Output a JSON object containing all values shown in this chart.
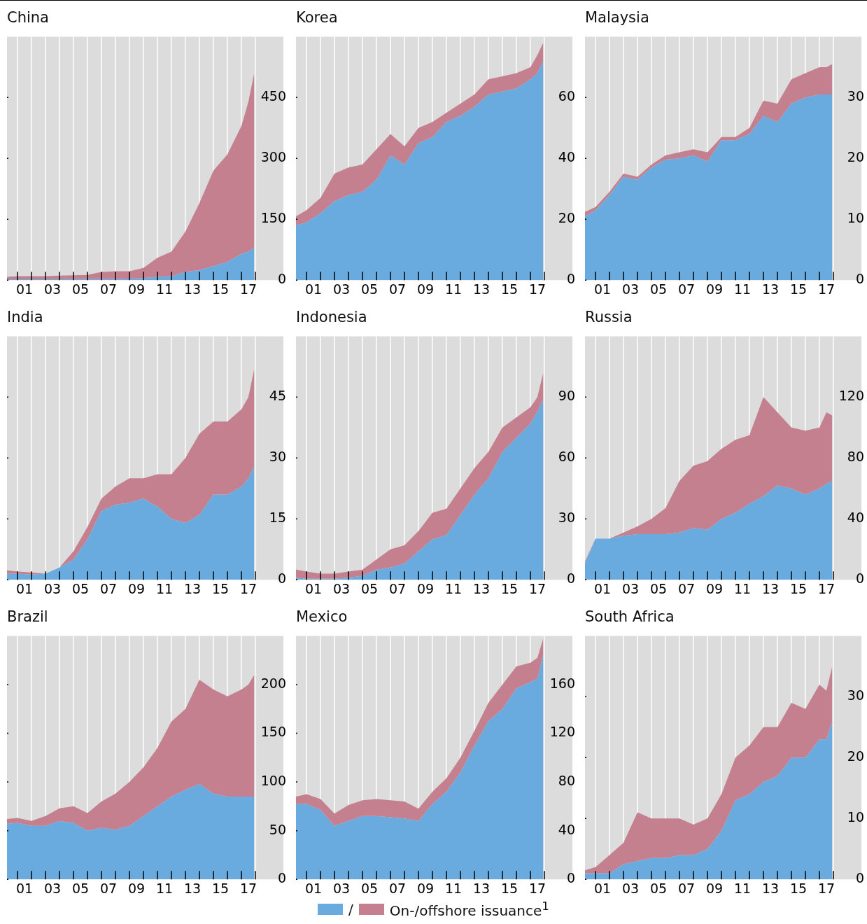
{
  "chart_data": [
    {
      "type": "area",
      "title": "China",
      "stacked": true,
      "grid": "x",
      "xlim": [
        "2000-04",
        "2020-01"
      ],
      "ylim": [
        0,
        600
      ],
      "yticks": [
        0,
        150,
        300,
        450
      ],
      "xticks": [
        {
          "value": "2001",
          "label": null
        },
        {
          "value": "2001-07",
          "label": "01"
        },
        {
          "value": "2002",
          "label": null
        },
        {
          "value": "2003",
          "label": null
        },
        {
          "value": "2003-07",
          "label": "03"
        },
        {
          "value": "2004",
          "label": null
        },
        {
          "value": "2005",
          "label": null
        },
        {
          "value": "2005-07",
          "label": "05"
        },
        {
          "value": "2006",
          "label": null
        },
        {
          "value": "2007",
          "label": null
        },
        {
          "value": "2007-07",
          "label": "07"
        },
        {
          "value": "2008",
          "label": null
        },
        {
          "value": "2009",
          "label": null
        },
        {
          "value": "2009-07",
          "label": "09"
        },
        {
          "value": "2010",
          "label": null
        },
        {
          "value": "2011",
          "label": null
        },
        {
          "value": "2011-07",
          "label": "11"
        },
        {
          "value": "2012",
          "label": null
        },
        {
          "value": "2013",
          "label": null
        },
        {
          "value": "2013-07",
          "label": "13"
        },
        {
          "value": "2014",
          "label": null
        },
        {
          "value": "2015",
          "label": null
        },
        {
          "value": "2015-07",
          "label": "15"
        },
        {
          "value": "2016",
          "label": null
        },
        {
          "value": "2017",
          "label": null
        },
        {
          "value": "2017-07",
          "label": "17"
        },
        {
          "value": "2018",
          "label": null
        }
      ],
      "x": [
        "2000-04",
        "2001",
        "2002",
        "2003",
        "2004",
        "2005",
        "2006",
        "2007",
        "2008",
        "2009",
        "2010",
        "2011",
        "2012",
        "2013",
        "2014",
        "2015",
        "2016",
        "2017",
        "2017-07",
        "2017-12"
      ],
      "series": [
        {
          "color": "#6aabdf",
          "values": [
            2,
            2,
            2,
            2,
            2,
            3,
            3,
            3,
            3,
            4,
            5,
            8,
            10,
            20,
            25,
            35,
            45,
            65,
            70,
            80
          ]
        },
        {
          "color": "#c4808f",
          "values": [
            6,
            8,
            8,
            8,
            9,
            9,
            10,
            17,
            19,
            18,
            25,
            47,
            60,
            100,
            165,
            235,
            265,
            315,
            370,
            430
          ]
        }
      ]
    },
    {
      "type": "area",
      "title": "Korea",
      "stacked": true,
      "grid": "x",
      "xlim": [
        "2000-04",
        "2020-01"
      ],
      "ylim": [
        0,
        80
      ],
      "yticks": [
        0,
        20,
        40,
        60
      ],
      "xticks": [
        {
          "value": "2001",
          "label": null
        },
        {
          "value": "2001-07",
          "label": "01"
        },
        {
          "value": "2002",
          "label": null
        },
        {
          "value": "2003",
          "label": null
        },
        {
          "value": "2003-07",
          "label": "03"
        },
        {
          "value": "2004",
          "label": null
        },
        {
          "value": "2005",
          "label": null
        },
        {
          "value": "2005-07",
          "label": "05"
        },
        {
          "value": "2006",
          "label": null
        },
        {
          "value": "2007",
          "label": null
        },
        {
          "value": "2007-07",
          "label": "07"
        },
        {
          "value": "2008",
          "label": null
        },
        {
          "value": "2009",
          "label": null
        },
        {
          "value": "2009-07",
          "label": "09"
        },
        {
          "value": "2010",
          "label": null
        },
        {
          "value": "2011",
          "label": null
        },
        {
          "value": "2011-07",
          "label": "11"
        },
        {
          "value": "2012",
          "label": null
        },
        {
          "value": "2013",
          "label": null
        },
        {
          "value": "2013-07",
          "label": "13"
        },
        {
          "value": "2014",
          "label": null
        },
        {
          "value": "2015",
          "label": null
        },
        {
          "value": "2015-07",
          "label": "15"
        },
        {
          "value": "2016",
          "label": null
        },
        {
          "value": "2017",
          "label": null
        },
        {
          "value": "2017-07",
          "label": "17"
        },
        {
          "value": "2018",
          "label": null
        }
      ],
      "x": [
        "2000-04",
        "2001",
        "2002",
        "2003",
        "2004",
        "2005",
        "2006",
        "2007",
        "2008",
        "2009",
        "2010",
        "2011",
        "2012",
        "2013",
        "2014",
        "2015",
        "2016",
        "2017",
        "2017-07",
        "2017-12"
      ],
      "series": [
        {
          "color": "#6aabdf",
          "values": [
            18,
            19,
            22,
            26,
            28,
            29,
            33,
            41,
            38,
            45,
            47,
            52,
            54,
            57,
            61,
            62,
            63,
            66,
            68,
            72
          ]
        },
        {
          "color": "#c4808f",
          "values": [
            3,
            4,
            5,
            9,
            9,
            9,
            10,
            7,
            6,
            5,
            5,
            3,
            4,
            4,
            5,
            5,
            5,
            4,
            6,
            6
          ]
        }
      ]
    },
    {
      "type": "area",
      "title": "Malaysia",
      "stacked": true,
      "grid": "x",
      "xlim": [
        "2000-04",
        "2020-01"
      ],
      "ylim": [
        0,
        40
      ],
      "yticks": [
        0,
        10,
        20,
        30
      ],
      "xticks": [
        {
          "value": "2001",
          "label": null
        },
        {
          "value": "2001-07",
          "label": "01"
        },
        {
          "value": "2002",
          "label": null
        },
        {
          "value": "2003",
          "label": null
        },
        {
          "value": "2003-07",
          "label": "03"
        },
        {
          "value": "2004",
          "label": null
        },
        {
          "value": "2005",
          "label": null
        },
        {
          "value": "2005-07",
          "label": "05"
        },
        {
          "value": "2006",
          "label": null
        },
        {
          "value": "2007",
          "label": null
        },
        {
          "value": "2007-07",
          "label": "07"
        },
        {
          "value": "2008",
          "label": null
        },
        {
          "value": "2009",
          "label": null
        },
        {
          "value": "2009-07",
          "label": "09"
        },
        {
          "value": "2010",
          "label": null
        },
        {
          "value": "2011",
          "label": null
        },
        {
          "value": "2011-07",
          "label": "11"
        },
        {
          "value": "2012",
          "label": null
        },
        {
          "value": "2013",
          "label": null
        },
        {
          "value": "2013-07",
          "label": "13"
        },
        {
          "value": "2014",
          "label": null
        },
        {
          "value": "2015",
          "label": null
        },
        {
          "value": "2015-07",
          "label": "15"
        },
        {
          "value": "2016",
          "label": null
        },
        {
          "value": "2017",
          "label": null
        },
        {
          "value": "2017-07",
          "label": "17"
        },
        {
          "value": "2018",
          "label": null
        }
      ],
      "x": [
        "2000-04",
        "2001",
        "2002",
        "2003",
        "2004",
        "2005",
        "2006",
        "2007",
        "2008",
        "2009",
        "2010",
        "2011",
        "2012",
        "2013",
        "2014",
        "2015",
        "2016",
        "2017",
        "2017-07",
        "2017-12"
      ],
      "series": [
        {
          "color": "#6aabdf",
          "values": [
            10.5,
            11.5,
            14,
            17,
            16.5,
            18.5,
            19.8,
            20,
            20.5,
            19.5,
            23,
            23,
            24,
            27,
            26,
            29,
            30,
            30.5,
            30.5,
            30.5
          ]
        },
        {
          "color": "#c4808f",
          "values": [
            0.7,
            0.5,
            0.5,
            0.5,
            0.5,
            0.5,
            0.7,
            1,
            1,
            1.5,
            0.5,
            0.5,
            1,
            2.5,
            3,
            4,
            4,
            4.5,
            4.5,
            5
          ]
        }
      ]
    },
    {
      "type": "area",
      "title": "India",
      "stacked": true,
      "grid": "x",
      "xlim": [
        "2000-04",
        "2020-01"
      ],
      "ylim": [
        0,
        60
      ],
      "yticks": [
        0,
        15,
        30,
        45
      ],
      "xticks": [
        {
          "value": "2001",
          "label": null
        },
        {
          "value": "2001-07",
          "label": "01"
        },
        {
          "value": "2002",
          "label": null
        },
        {
          "value": "2003",
          "label": null
        },
        {
          "value": "2003-07",
          "label": "03"
        },
        {
          "value": "2004",
          "label": null
        },
        {
          "value": "2005",
          "label": null
        },
        {
          "value": "2005-07",
          "label": "05"
        },
        {
          "value": "2006",
          "label": null
        },
        {
          "value": "2007",
          "label": null
        },
        {
          "value": "2007-07",
          "label": "07"
        },
        {
          "value": "2008",
          "label": null
        },
        {
          "value": "2009",
          "label": null
        },
        {
          "value": "2009-07",
          "label": "09"
        },
        {
          "value": "2010",
          "label": null
        },
        {
          "value": "2011",
          "label": null
        },
        {
          "value": "2011-07",
          "label": "11"
        },
        {
          "value": "2012",
          "label": null
        },
        {
          "value": "2013",
          "label": null
        },
        {
          "value": "2013-07",
          "label": "13"
        },
        {
          "value": "2014",
          "label": null
        },
        {
          "value": "2015",
          "label": null
        },
        {
          "value": "2015-07",
          "label": "15"
        },
        {
          "value": "2016",
          "label": null
        },
        {
          "value": "2017",
          "label": null
        },
        {
          "value": "2017-07",
          "label": "17"
        },
        {
          "value": "2018",
          "label": null
        }
      ],
      "x": [
        "2000-04",
        "2001",
        "2002",
        "2003",
        "2004",
        "2005",
        "2006",
        "2007",
        "2008",
        "2009",
        "2010",
        "2011",
        "2012",
        "2013",
        "2014",
        "2015",
        "2016",
        "2017",
        "2017-07",
        "2017-12"
      ],
      "series": [
        {
          "color": "#6aabdf",
          "values": [
            1.5,
            1.5,
            1.3,
            1.5,
            3,
            5,
            10,
            17,
            18.5,
            19,
            20,
            18,
            15,
            14,
            16,
            21,
            21,
            23,
            25,
            28
          ]
        },
        {
          "color": "#c4808f",
          "values": [
            0.8,
            0.5,
            0.5,
            0,
            0,
            2,
            3,
            3,
            4.5,
            6,
            5,
            8,
            11,
            16,
            20,
            18,
            18,
            19,
            20,
            24
          ]
        }
      ]
    },
    {
      "type": "area",
      "title": "Indonesia",
      "stacked": true,
      "grid": "x",
      "xlim": [
        "2000-04",
        "2020-01"
      ],
      "ylim": [
        0,
        120
      ],
      "yticks": [
        0,
        30,
        60,
        90
      ],
      "xticks": [
        {
          "value": "2001",
          "label": null
        },
        {
          "value": "2001-07",
          "label": "01"
        },
        {
          "value": "2002",
          "label": null
        },
        {
          "value": "2003",
          "label": null
        },
        {
          "value": "2003-07",
          "label": "03"
        },
        {
          "value": "2004",
          "label": null
        },
        {
          "value": "2005",
          "label": null
        },
        {
          "value": "2005-07",
          "label": "05"
        },
        {
          "value": "2006",
          "label": null
        },
        {
          "value": "2007",
          "label": null
        },
        {
          "value": "2007-07",
          "label": "07"
        },
        {
          "value": "2008",
          "label": null
        },
        {
          "value": "2009",
          "label": null
        },
        {
          "value": "2009-07",
          "label": "09"
        },
        {
          "value": "2010",
          "label": null
        },
        {
          "value": "2011",
          "label": null
        },
        {
          "value": "2011-07",
          "label": "11"
        },
        {
          "value": "2012",
          "label": null
        },
        {
          "value": "2013",
          "label": null
        },
        {
          "value": "2013-07",
          "label": "13"
        },
        {
          "value": "2014",
          "label": null
        },
        {
          "value": "2015",
          "label": null
        },
        {
          "value": "2015-07",
          "label": "15"
        },
        {
          "value": "2016",
          "label": null
        },
        {
          "value": "2017",
          "label": null
        },
        {
          "value": "2017-07",
          "label": "17"
        },
        {
          "value": "2018",
          "label": null
        }
      ],
      "x": [
        "2000-04",
        "2001",
        "2002",
        "2003",
        "2004",
        "2005",
        "2006",
        "2007",
        "2008",
        "2009",
        "2010",
        "2011",
        "2012",
        "2013",
        "2014",
        "2015",
        "2016",
        "2017",
        "2017-07",
        "2017-12"
      ],
      "series": [
        {
          "color": "#6aabdf",
          "values": [
            1,
            0.5,
            0.5,
            0.5,
            1,
            2,
            5,
            6,
            8,
            14,
            20,
            22,
            32,
            42,
            50,
            63,
            70,
            77,
            83,
            89
          ]
        },
        {
          "color": "#c4808f",
          "values": [
            4,
            3.5,
            2.5,
            2.5,
            3,
            3,
            5,
            9,
            9,
            10,
            13,
            13,
            13,
            13,
            13,
            12,
            10,
            8,
            7,
            13
          ]
        }
      ]
    },
    {
      "type": "area",
      "title": "Russia",
      "stacked": true,
      "grid": "x",
      "xlim": [
        "2000-04",
        "2020-01"
      ],
      "ylim": [
        0,
        160
      ],
      "yticks": [
        0,
        40,
        80,
        120
      ],
      "xticks": [
        {
          "value": "2001",
          "label": null
        },
        {
          "value": "2001-07",
          "label": "01"
        },
        {
          "value": "2002",
          "label": null
        },
        {
          "value": "2003",
          "label": null
        },
        {
          "value": "2003-07",
          "label": "03"
        },
        {
          "value": "2004",
          "label": null
        },
        {
          "value": "2005",
          "label": null
        },
        {
          "value": "2005-07",
          "label": "05"
        },
        {
          "value": "2006",
          "label": null
        },
        {
          "value": "2007",
          "label": null
        },
        {
          "value": "2007-07",
          "label": "07"
        },
        {
          "value": "2008",
          "label": null
        },
        {
          "value": "2009",
          "label": null
        },
        {
          "value": "2009-07",
          "label": "09"
        },
        {
          "value": "2010",
          "label": null
        },
        {
          "value": "2011",
          "label": null
        },
        {
          "value": "2011-07",
          "label": "11"
        },
        {
          "value": "2012",
          "label": null
        },
        {
          "value": "2013",
          "label": null
        },
        {
          "value": "2013-07",
          "label": "13"
        },
        {
          "value": "2014",
          "label": null
        },
        {
          "value": "2015",
          "label": null
        },
        {
          "value": "2015-07",
          "label": "15"
        },
        {
          "value": "2016",
          "label": null
        },
        {
          "value": "2017",
          "label": null
        },
        {
          "value": "2017-07",
          "label": "17"
        },
        {
          "value": "2018",
          "label": null
        }
      ],
      "x": [
        "2000-04",
        "2001",
        "2002",
        "2003",
        "2004",
        "2005",
        "2006",
        "2007",
        "2008",
        "2009",
        "2010",
        "2011",
        "2012",
        "2013",
        "2014",
        "2015",
        "2016",
        "2017",
        "2017-07",
        "2017-12"
      ],
      "series": [
        {
          "color": "#6aabdf",
          "values": [
            11,
            27,
            27,
            29,
            30,
            30,
            30,
            31,
            34,
            33,
            40,
            44,
            50,
            55,
            62,
            60,
            56,
            60,
            63,
            65
          ]
        },
        {
          "color": "#c4808f",
          "values": [
            1,
            0,
            0,
            2,
            5,
            10,
            17,
            34,
            41,
            45,
            46,
            48,
            45,
            65,
            48,
            40,
            42,
            40,
            47,
            43
          ]
        }
      ]
    },
    {
      "type": "area",
      "title": "Brazil",
      "stacked": true,
      "grid": "x",
      "xlim": [
        "2000-04",
        "2020-01"
      ],
      "ylim": [
        0,
        250
      ],
      "yticks": [
        0,
        50,
        100,
        150,
        200
      ],
      "xticks": [
        {
          "value": "2001",
          "label": null
        },
        {
          "value": "2001-07",
          "label": "01"
        },
        {
          "value": "2002",
          "label": null
        },
        {
          "value": "2003",
          "label": null
        },
        {
          "value": "2003-07",
          "label": "03"
        },
        {
          "value": "2004",
          "label": null
        },
        {
          "value": "2005",
          "label": null
        },
        {
          "value": "2005-07",
          "label": "05"
        },
        {
          "value": "2006",
          "label": null
        },
        {
          "value": "2007",
          "label": null
        },
        {
          "value": "2007-07",
          "label": "07"
        },
        {
          "value": "2008",
          "label": null
        },
        {
          "value": "2009",
          "label": null
        },
        {
          "value": "2009-07",
          "label": "09"
        },
        {
          "value": "2010",
          "label": null
        },
        {
          "value": "2011",
          "label": null
        },
        {
          "value": "2011-07",
          "label": "11"
        },
        {
          "value": "2012",
          "label": null
        },
        {
          "value": "2013",
          "label": null
        },
        {
          "value": "2013-07",
          "label": "13"
        },
        {
          "value": "2014",
          "label": null
        },
        {
          "value": "2015",
          "label": null
        },
        {
          "value": "2015-07",
          "label": "15"
        },
        {
          "value": "2016",
          "label": null
        },
        {
          "value": "2017",
          "label": null
        },
        {
          "value": "2017-07",
          "label": "17"
        },
        {
          "value": "2018",
          "label": null
        }
      ],
      "x": [
        "2000-04",
        "2001",
        "2002",
        "2003",
        "2004",
        "2005",
        "2006",
        "2007",
        "2008",
        "2009",
        "2010",
        "2011",
        "2012",
        "2013",
        "2014",
        "2015",
        "2016",
        "2017",
        "2017-07",
        "2017-12"
      ],
      "series": [
        {
          "color": "#6aabdf",
          "values": [
            57,
            58,
            55,
            55,
            60,
            58,
            50,
            53,
            51,
            55,
            65,
            75,
            85,
            92,
            98,
            88,
            85,
            85,
            85,
            85
          ]
        },
        {
          "color": "#c4808f",
          "values": [
            5,
            5,
            5,
            10,
            13,
            17,
            18,
            27,
            37,
            45,
            50,
            60,
            77,
            83,
            107,
            107,
            103,
            110,
            115,
            125
          ]
        }
      ]
    },
    {
      "type": "area",
      "title": "Mexico",
      "stacked": true,
      "grid": "x",
      "legend": "bottom",
      "xlim": [
        "2000-04",
        "2020-01"
      ],
      "ylim": [
        0,
        200
      ],
      "yticks": [
        0,
        40,
        80,
        120,
        160
      ],
      "xticks": [
        {
          "value": "2001",
          "label": null
        },
        {
          "value": "2001-07",
          "label": "01"
        },
        {
          "value": "2002",
          "label": null
        },
        {
          "value": "2003",
          "label": null
        },
        {
          "value": "2003-07",
          "label": "03"
        },
        {
          "value": "2004",
          "label": null
        },
        {
          "value": "2005",
          "label": null
        },
        {
          "value": "2005-07",
          "label": "05"
        },
        {
          "value": "2006",
          "label": null
        },
        {
          "value": "2007",
          "label": null
        },
        {
          "value": "2007-07",
          "label": "07"
        },
        {
          "value": "2008",
          "label": null
        },
        {
          "value": "2009",
          "label": null
        },
        {
          "value": "2009-07",
          "label": "09"
        },
        {
          "value": "2010",
          "label": null
        },
        {
          "value": "2011",
          "label": null
        },
        {
          "value": "2011-07",
          "label": "11"
        },
        {
          "value": "2012",
          "label": null
        },
        {
          "value": "2013",
          "label": null
        },
        {
          "value": "2013-07",
          "label": "13"
        },
        {
          "value": "2014",
          "label": null
        },
        {
          "value": "2015",
          "label": null
        },
        {
          "value": "2015-07",
          "label": "15"
        },
        {
          "value": "2016",
          "label": null
        },
        {
          "value": "2017",
          "label": null
        },
        {
          "value": "2017-07",
          "label": "17"
        },
        {
          "value": "2018",
          "label": null
        }
      ],
      "x": [
        "2000-04",
        "2001",
        "2002",
        "2003",
        "2004",
        "2005",
        "2006",
        "2007",
        "2008",
        "2009",
        "2010",
        "2011",
        "2012",
        "2013",
        "2014",
        "2015",
        "2016",
        "2017",
        "2017-07",
        "2017-12"
      ],
      "series": [
        {
          "name": "/",
          "color": "#6aabdf",
          "values": [
            62,
            62,
            57,
            44,
            48,
            52,
            52,
            51,
            50,
            48,
            62,
            72,
            88,
            110,
            130,
            140,
            157,
            162,
            165,
            185
          ]
        },
        {
          "name": "On-/offshore issuance$^{1}$",
          "color": "#c4808f",
          "values": [
            6,
            8,
            9,
            10,
            13,
            13,
            14,
            14,
            14,
            10,
            10,
            11,
            12,
            12,
            15,
            20,
            18,
            16,
            17,
            13
          ]
        }
      ]
    },
    {
      "type": "area",
      "title": "South Africa",
      "stacked": true,
      "grid": "x",
      "xlim": [
        "2000-04",
        "2020-01"
      ],
      "ylim": [
        0,
        40
      ],
      "yticks": [
        0,
        10,
        20,
        30
      ],
      "xticks": [
        {
          "value": "2001",
          "label": null
        },
        {
          "value": "2001-07",
          "label": "01"
        },
        {
          "value": "2002",
          "label": null
        },
        {
          "value": "2003",
          "label": null
        },
        {
          "value": "2003-07",
          "label": "03"
        },
        {
          "value": "2004",
          "label": null
        },
        {
          "value": "2005",
          "label": null
        },
        {
          "value": "2005-07",
          "label": "05"
        },
        {
          "value": "2006",
          "label": null
        },
        {
          "value": "2007",
          "label": null
        },
        {
          "value": "2007-07",
          "label": "07"
        },
        {
          "value": "2008",
          "label": null
        },
        {
          "value": "2009",
          "label": null
        },
        {
          "value": "2009-07",
          "label": "09"
        },
        {
          "value": "2010",
          "label": null
        },
        {
          "value": "2011",
          "label": null
        },
        {
          "value": "2011-07",
          "label": "11"
        },
        {
          "value": "2012",
          "label": null
        },
        {
          "value": "2013",
          "label": null
        },
        {
          "value": "2013-07",
          "label": "13"
        },
        {
          "value": "2014",
          "label": null
        },
        {
          "value": "2015",
          "label": null
        },
        {
          "value": "2015-07",
          "label": "15"
        },
        {
          "value": "2016",
          "label": null
        },
        {
          "value": "2017",
          "label": null
        },
        {
          "value": "2017-07",
          "label": "17"
        },
        {
          "value": "2018",
          "label": null
        }
      ],
      "x": [
        "2000-04",
        "2001",
        "2002",
        "2003",
        "2004",
        "2005",
        "2006",
        "2007",
        "2008",
        "2009",
        "2010",
        "2011",
        "2012",
        "2013",
        "2014",
        "2015",
        "2016",
        "2017",
        "2017-07",
        "2017-12"
      ],
      "series": [
        {
          "color": "#6aabdf",
          "values": [
            1,
            1,
            1,
            2.5,
            3,
            3.5,
            3.5,
            4,
            4,
            5,
            8,
            13,
            14,
            16,
            17,
            20,
            20,
            23,
            23,
            26
          ]
        },
        {
          "color": "#c4808f",
          "values": [
            0.5,
            1,
            3,
            3.5,
            8,
            6.5,
            6.5,
            6,
            5,
            5,
            6,
            7,
            8,
            9,
            8,
            9,
            8,
            9,
            8,
            9
          ]
        }
      ]
    }
  ]
}
